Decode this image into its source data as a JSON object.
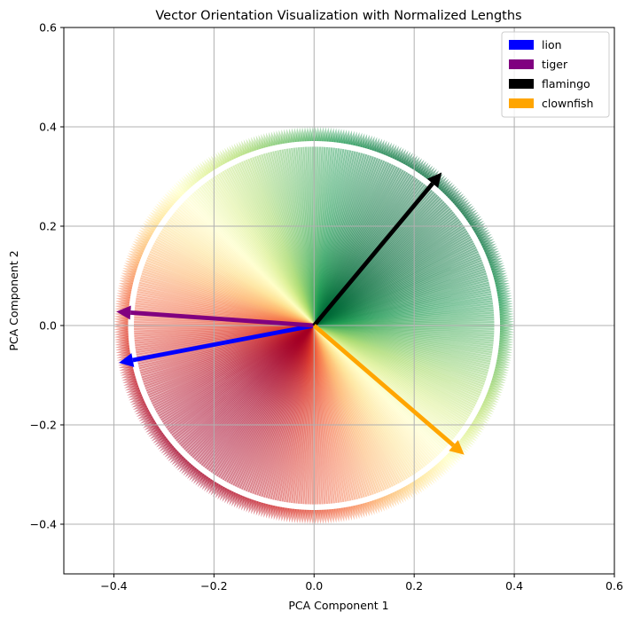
{
  "chart_data": {
    "type": "quiver",
    "title": "Vector Orientation Visualization with Normalized Lengths",
    "xlabel": "PCA Component 1",
    "ylabel": "PCA Component 2",
    "xlim": [
      -0.5,
      0.6
    ],
    "ylim": [
      -0.5,
      0.6
    ],
    "xticks": [
      -0.4,
      -0.2,
      0.0,
      0.2,
      0.4,
      0.6
    ],
    "yticks": [
      -0.4,
      -0.2,
      0.0,
      0.2,
      0.4,
      0.6
    ],
    "xtick_labels": [
      "−0.4",
      "−0.2",
      "0.0",
      "0.2",
      "0.4",
      "0.6"
    ],
    "ytick_labels": [
      "−0.4",
      "−0.2",
      "0.0",
      "0.2",
      "0.4",
      "0.6"
    ],
    "grid": true,
    "legend_position": "top-right",
    "background_field": {
      "description_colormap": "RdYlGn",
      "radius": 0.4,
      "alpha": 0.6
    },
    "series": [
      {
        "name": "lion",
        "color": "#0000ff",
        "x": -0.39,
        "y": -0.075
      },
      {
        "name": "tiger",
        "color": "#800080",
        "x": -0.395,
        "y": 0.028
      },
      {
        "name": "flamingo",
        "color": "#000000",
        "x": 0.255,
        "y": 0.308
      },
      {
        "name": "clownfish",
        "color": "#ffa500",
        "x": 0.3,
        "y": -0.26
      }
    ]
  }
}
